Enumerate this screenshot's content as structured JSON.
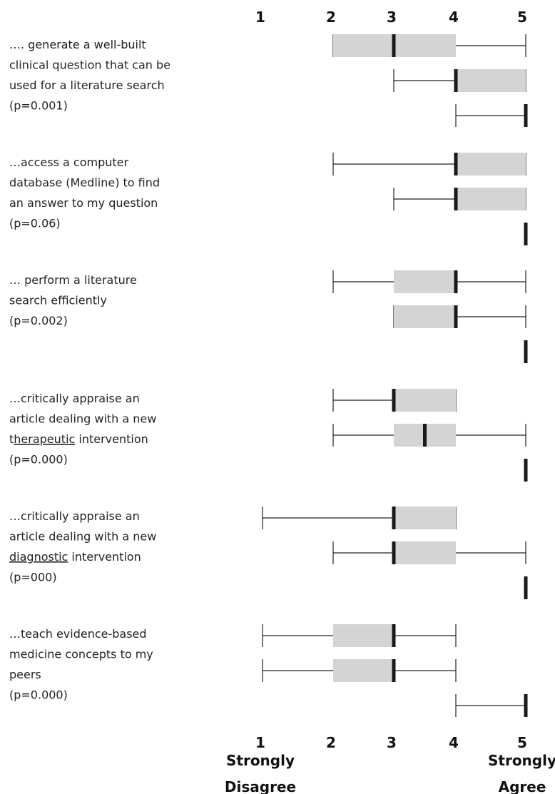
{
  "chart_data": {
    "type": "box",
    "scale": [
      1,
      2,
      3,
      4,
      5
    ],
    "xlim": [
      1,
      5
    ],
    "anchors": {
      "low": [
        "Strongly",
        "Disagree"
      ],
      "high": [
        "Strongly",
        "Agree"
      ]
    },
    "colors": {
      "box": "#d4d4d4",
      "median": "#1a1a1a",
      "whisker": "#222222"
    },
    "items": [
      {
        "label_lines": [
          [
            {
              "t": "…. generate a well-built"
            }
          ],
          [
            {
              "t": "clinical question that can be"
            }
          ],
          [
            {
              "t": "used for a literature search"
            }
          ],
          [
            {
              "t": "(p=0.001)"
            }
          ]
        ],
        "boxes": [
          {
            "min": 2,
            "q1": 2,
            "median": 3,
            "q3": 4,
            "max": 5
          },
          {
            "min": 3,
            "q1": 4,
            "median": 4,
            "q3": 5,
            "max": 5
          },
          {
            "min": 4,
            "q1": 5,
            "median": 5,
            "q3": 5,
            "max": 5
          }
        ]
      },
      {
        "label_lines": [
          [
            {
              "t": "…access a computer"
            }
          ],
          [
            {
              "t": "database (Medline) to find"
            }
          ],
          [
            {
              "t": "an answer to my question"
            }
          ],
          [
            {
              "t": "(p=0.06)"
            }
          ]
        ],
        "boxes": [
          {
            "min": 2,
            "q1": 4,
            "median": 4,
            "q3": 5,
            "max": 5
          },
          {
            "min": 3,
            "q1": 4,
            "median": 4,
            "q3": 5,
            "max": 5
          },
          {
            "min": 5,
            "q1": 5,
            "median": 5,
            "q3": 5,
            "max": 5
          }
        ]
      },
      {
        "label_lines": [
          [
            {
              "t": "… perform a literature"
            }
          ],
          [
            {
              "t": "search efficiently"
            }
          ],
          [
            {
              "t": "(p=0.002)"
            }
          ]
        ],
        "boxes": [
          {
            "min": 2,
            "q1": 3,
            "median": 4,
            "q3": 4,
            "max": 5
          },
          {
            "min": 3,
            "q1": 3,
            "median": 4,
            "q3": 4,
            "max": 5
          },
          {
            "min": 5,
            "q1": 5,
            "median": 5,
            "q3": 5,
            "max": 5
          }
        ]
      },
      {
        "label_lines": [
          [
            {
              "t": "…critically appraise an"
            }
          ],
          [
            {
              "t": "article dealing with a new"
            }
          ],
          [
            {
              "t": "t"
            },
            {
              "t": "herapeutic",
              "u": true
            },
            {
              "t": " intervention"
            }
          ],
          [
            {
              "t": "(p=0.000)"
            }
          ]
        ],
        "boxes": [
          {
            "min": 2,
            "q1": 3,
            "median": 3,
            "q3": 4,
            "max": 4
          },
          {
            "min": 2,
            "q1": 3,
            "median": 3.5,
            "q3": 4,
            "max": 5
          },
          {
            "min": 5,
            "q1": 5,
            "median": 5,
            "q3": 5,
            "max": 5
          }
        ]
      },
      {
        "label_lines": [
          [
            {
              "t": "…critically appraise an"
            }
          ],
          [
            {
              "t": "article dealing with a new"
            }
          ],
          [
            {
              "t": "diagnostic",
              "u": true
            },
            {
              "t": " intervention"
            }
          ],
          [
            {
              "t": "(p=000)"
            }
          ]
        ],
        "boxes": [
          {
            "min": 1,
            "q1": 3,
            "median": 3,
            "q3": 4,
            "max": 4
          },
          {
            "min": 2,
            "q1": 3,
            "median": 3,
            "q3": 4,
            "max": 5
          },
          {
            "min": 5,
            "q1": 5,
            "median": 5,
            "q3": 5,
            "max": 5
          }
        ]
      },
      {
        "label_lines": [
          [
            {
              "t": "…teach evidence-based"
            }
          ],
          [
            {
              "t": "medicine concepts to my"
            }
          ],
          [
            {
              "t": "peers"
            }
          ],
          [
            {
              "t": "(p=0.000)"
            }
          ]
        ],
        "boxes": [
          {
            "min": 1,
            "q1": 2,
            "median": 3,
            "q3": 3,
            "max": 4
          },
          {
            "min": 1,
            "q1": 2,
            "median": 3,
            "q3": 3,
            "max": 4
          },
          {
            "min": 4,
            "q1": 5,
            "median": 5,
            "q3": 5,
            "max": 5
          }
        ]
      }
    ]
  }
}
